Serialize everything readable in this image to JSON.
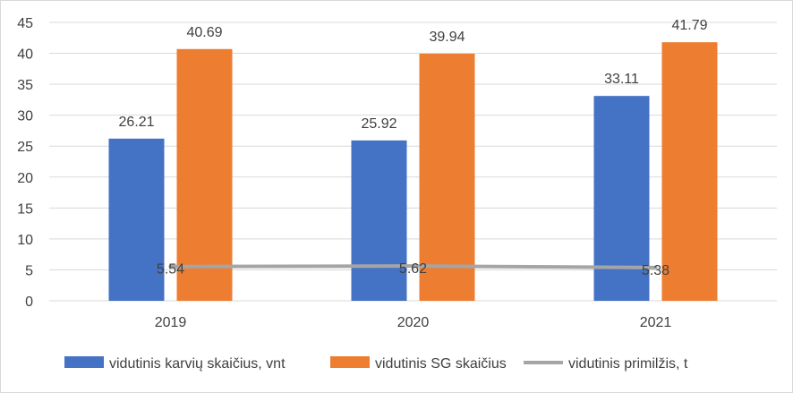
{
  "chart_data": {
    "type": "bar",
    "categories": [
      "2019",
      "2020",
      "2021"
    ],
    "series": [
      {
        "name": "vidutinis karvių skaičius, vnt",
        "type": "bar",
        "values": [
          26.21,
          25.92,
          33.11
        ],
        "labels": [
          "26.21",
          "25.92",
          "33.11"
        ],
        "color": "#4472c4"
      },
      {
        "name": "vidutinis SG skaičius",
        "type": "bar",
        "values": [
          40.69,
          39.94,
          41.79
        ],
        "labels": [
          "40.69",
          "39.94",
          "41.79"
        ],
        "color": "#ed7d31"
      },
      {
        "name": "vidutinis primilžis, t",
        "type": "line",
        "values": [
          5.54,
          5.62,
          5.38
        ],
        "labels": [
          "5.54",
          "5.62",
          "5.38"
        ],
        "color": "#a5a5a5"
      }
    ],
    "yticks": [
      "0",
      "5",
      "10",
      "15",
      "20",
      "25",
      "30",
      "35",
      "40",
      "45"
    ],
    "ylim": [
      0,
      45
    ],
    "grid": true,
    "legend": "bottom",
    "gridline_color": "#d9d9d9"
  }
}
